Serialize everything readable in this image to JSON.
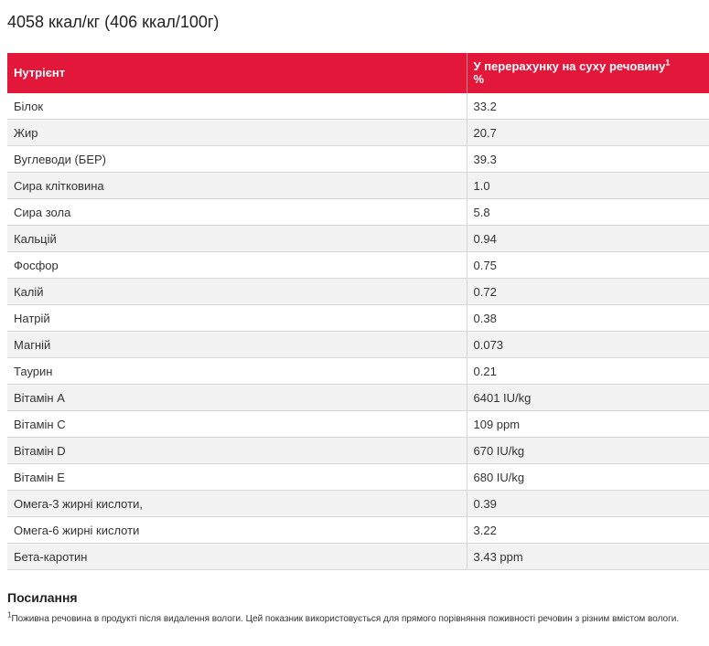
{
  "energy": "4058 ккал/кг (406 ккал/100г)",
  "table": {
    "headers": {
      "nutrient": "Нутрієнт",
      "dry_matter": "У перерахунку на суху речовину",
      "dry_matter_sup": "1",
      "dry_matter_unit": "%"
    },
    "rows": [
      {
        "name": "Білок",
        "value": "33.2"
      },
      {
        "name": "Жир",
        "value": "20.7"
      },
      {
        "name": "Вуглеводи (БЕР)",
        "value": "39.3"
      },
      {
        "name": "Сира клітковина",
        "value": "1.0"
      },
      {
        "name": "Сира зола",
        "value": "5.8"
      },
      {
        "name": "Кальцій",
        "value": "0.94"
      },
      {
        "name": "Фосфор",
        "value": "0.75"
      },
      {
        "name": "Калій",
        "value": "0.72"
      },
      {
        "name": "Натрій",
        "value": "0.38"
      },
      {
        "name": "Магній",
        "value": "0.073"
      },
      {
        "name": "Таурин",
        "value": "0.21"
      },
      {
        "name": "Вітамін А",
        "value": "6401 IU/kg"
      },
      {
        "name": "Вітамін С",
        "value": "109 ppm"
      },
      {
        "name": "Вітамін D",
        "value": "670 IU/kg"
      },
      {
        "name": "Вітамін Е",
        "value": "680 IU/kg"
      },
      {
        "name": "Омега-3 жирні кислоти,",
        "value": "0.39"
      },
      {
        "name": "Омега-6 жирні кислоти",
        "value": "3.22"
      },
      {
        "name": "Бета-каротин",
        "value": "3.43 ppm"
      }
    ]
  },
  "references": {
    "title": "Посилання",
    "footnote_sup": "1",
    "footnote_text": "Поживна речовина в продукті після видалення вологи. Цей показник використовується для прямого порівняння поживності речовин з різним вмістом вологи."
  },
  "colors": {
    "header_bg": "#e3173a",
    "row_alt_bg": "#f2f2f2"
  }
}
